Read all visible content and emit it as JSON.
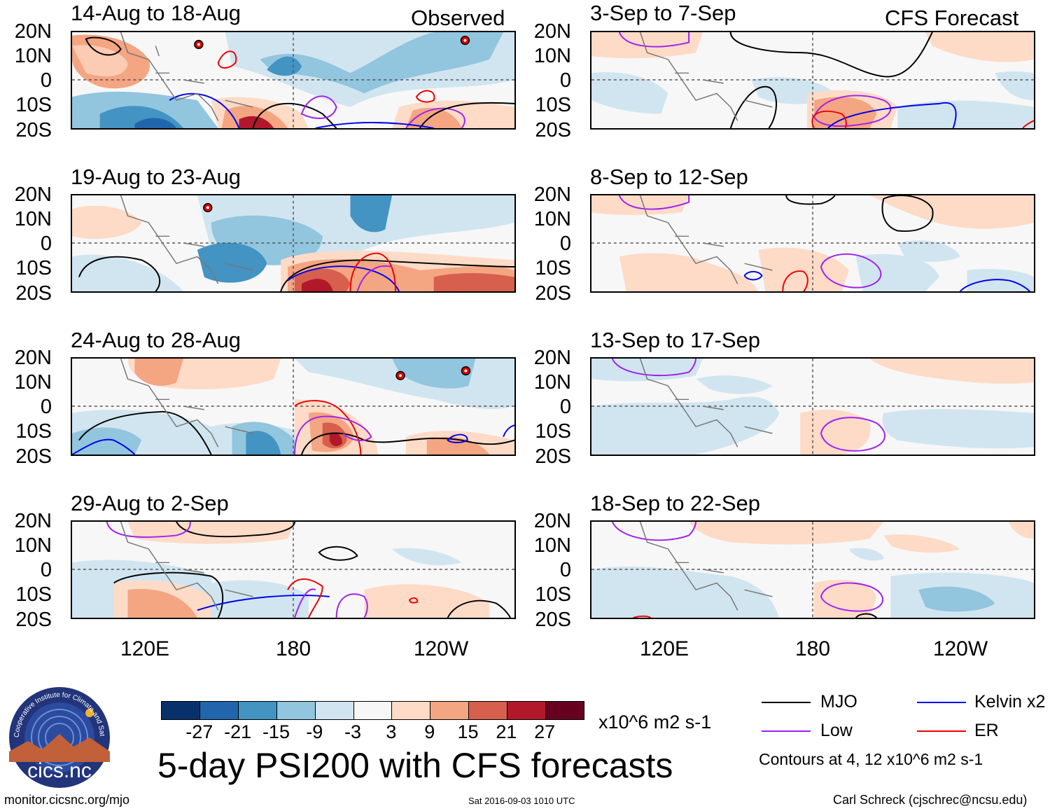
{
  "headers": {
    "left": "Observed",
    "right": "CFS Forecast"
  },
  "lat_labels": [
    "20N",
    "10N",
    "0",
    "10S",
    "20S"
  ],
  "lon_labels": [
    "120E",
    "180",
    "120W"
  ],
  "panels": [
    {
      "title": "14-Aug to 18-Aug",
      "cyclones": 2
    },
    {
      "title": "19-Aug to 23-Aug",
      "cyclones": 1
    },
    {
      "title": "24-Aug to 28-Aug",
      "cyclones": 2
    },
    {
      "title": "29-Aug to 2-Sep",
      "cyclones": 0
    },
    {
      "title": "3-Sep to 7-Sep",
      "cyclones": 0
    },
    {
      "title": "8-Sep to 12-Sep",
      "cyclones": 0
    },
    {
      "title": "13-Sep to 17-Sep",
      "cyclones": 0
    },
    {
      "title": "18-Sep to 22-Sep",
      "cyclones": 0
    }
  ],
  "colorbar": {
    "labels": [
      "-27",
      "-21",
      "-15",
      "-9",
      "-3",
      "3",
      "9",
      "15",
      "21",
      "27"
    ],
    "colors": [
      "#08306b",
      "#2166ac",
      "#4393c3",
      "#92c5de",
      "#d1e5f0",
      "#f7f7f7",
      "#fddbc7",
      "#f4a582",
      "#d6604d",
      "#b2182b",
      "#67001f"
    ],
    "units": "x10^6 m2 s-1"
  },
  "title": "5-day PSI200 with CFS forecasts",
  "legend": {
    "items": [
      {
        "label": "MJO",
        "color": "#000000"
      },
      {
        "label": "Kelvin x2",
        "color": "#0000ee"
      },
      {
        "label": "Low",
        "color": "#a020f0"
      },
      {
        "label": "ER",
        "color": "#ee0000"
      }
    ],
    "contour_note": "Contours at 4, 12 x10^6 m2 s-1"
  },
  "logo": {
    "text": "cics.nc",
    "ring_text": "Cooperative Institute for Climate and Satellites"
  },
  "footer": {
    "url": "monitor.cicsnc.org/mjo",
    "timestamp": "Sat 2016-09-03 1010 UTC",
    "author": "Carl Schreck (cjschrec@ncsu.edu)"
  }
}
